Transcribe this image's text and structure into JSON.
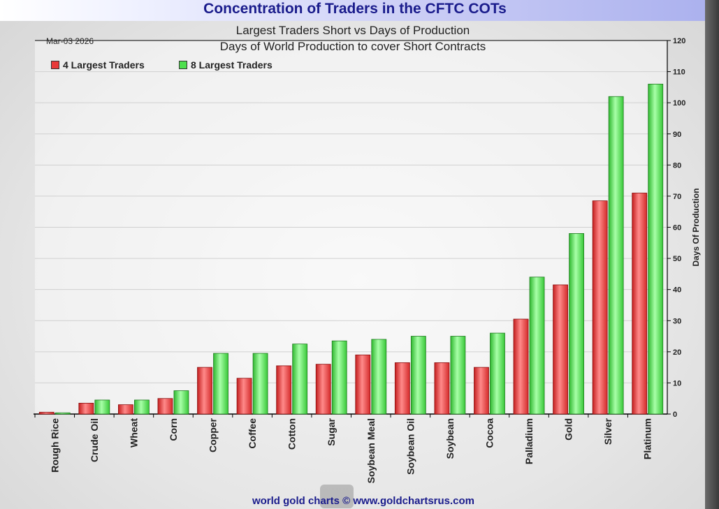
{
  "page": {
    "title": "Concentration of Traders in the CFTC COTs",
    "footer": "world gold charts © www.goldchartsrus.com"
  },
  "chart_data": {
    "type": "bar",
    "title": "Largest Traders Short vs Days of Production",
    "subtitle": "Days of World Production to cover Short Contracts",
    "date": "Mar-03  2026",
    "ylabel": "Days Of Production",
    "xlabel": "",
    "ylim": [
      0,
      120
    ],
    "yticks": [
      0,
      10,
      20,
      30,
      40,
      50,
      60,
      70,
      80,
      90,
      100,
      110,
      120
    ],
    "y_axis_side": "right",
    "grid": true,
    "legend": "top-left",
    "categories": [
      "Rough Rice",
      "Crude Oil",
      "Wheat",
      "Corn",
      "Copper",
      "Coffee",
      "Cotton",
      "Sugar",
      "Soybean Meal",
      "Soybean Oil",
      "Soybean",
      "Cocoa",
      "Palladium",
      "Gold",
      "Silver",
      "Platinum"
    ],
    "series": [
      {
        "name": "4 Largest Traders",
        "color": "#e83a3a",
        "values": [
          0.6,
          3.5,
          3,
          5,
          15,
          11.5,
          15.5,
          16,
          19,
          16.5,
          16.5,
          15,
          30.5,
          41.5,
          68.5,
          71
        ]
      },
      {
        "name": "8 Largest Traders",
        "color": "#4ee04e",
        "values": [
          0.4,
          4.5,
          4.5,
          7.5,
          19.5,
          19.5,
          22.5,
          23.5,
          24,
          25,
          25,
          26,
          44,
          58,
          102,
          106
        ]
      }
    ]
  }
}
